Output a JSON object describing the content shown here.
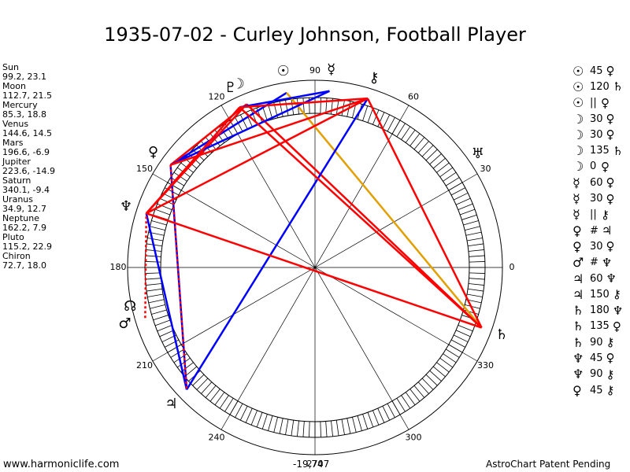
{
  "title": "1935-07-02 - Curley Johnson, Football Player",
  "planets": [
    {
      "name": "Sun",
      "coords": "99.2, 23.1",
      "glyph": "☉",
      "lon": 99.2
    },
    {
      "name": "Moon",
      "coords": "112.7, 21.5",
      "glyph": "☽",
      "lon": 112.7
    },
    {
      "name": "Mercury",
      "coords": "85.3, 18.8",
      "glyph": "☿",
      "lon": 85.3
    },
    {
      "name": "Venus",
      "coords": "144.6, 14.5",
      "glyph": "♀",
      "lon": 144.6
    },
    {
      "name": "Mars",
      "coords": "196.6, -6.9",
      "glyph": "♂",
      "lon": 196.6
    },
    {
      "name": "Jupiter",
      "coords": "223.6, -14.9",
      "glyph": "♃",
      "lon": 223.6
    },
    {
      "name": "Saturn",
      "coords": "340.1, -9.4",
      "glyph": "♄",
      "lon": 340.1
    },
    {
      "name": "Uranus",
      "coords": "34.9, 12.7",
      "glyph": "♅",
      "lon": 34.9
    },
    {
      "name": "Neptune",
      "coords": "162.2, 7.9",
      "glyph": "♆",
      "lon": 162.2
    },
    {
      "name": "Pluto",
      "coords": "115.2, 22.9",
      "glyph": "♇",
      "lon": 115.2
    },
    {
      "name": "Chiron",
      "coords": "72.7, 18.0",
      "glyph": "⚷",
      "lon": 72.7
    }
  ],
  "aspects": [
    {
      "p1": "☉",
      "value": "45",
      "p2": "♀"
    },
    {
      "p1": "☉",
      "value": "120",
      "p2": "♄"
    },
    {
      "p1": "☉",
      "value": "||",
      "p2": "♀"
    },
    {
      "p1": "☽",
      "value": "30",
      "p2": "♀"
    },
    {
      "p1": "☽",
      "value": "30",
      "p2": "♀"
    },
    {
      "p1": "☽",
      "value": "135",
      "p2": "♄"
    },
    {
      "p1": "☽",
      "value": "0",
      "p2": "♀"
    },
    {
      "p1": "☿",
      "value": "60",
      "p2": "♀"
    },
    {
      "p1": "☿",
      "value": "30",
      "p2": "♀"
    },
    {
      "p1": "☿",
      "value": "||",
      "p2": "⚷"
    },
    {
      "p1": "♀",
      "value": "#",
      "p2": "♃"
    },
    {
      "p1": "♀",
      "value": "30",
      "p2": "♀"
    },
    {
      "p1": "♂",
      "value": "#",
      "p2": "♆"
    },
    {
      "p1": "♃",
      "value": "60",
      "p2": "♆"
    },
    {
      "p1": "♃",
      "value": "150",
      "p2": "⚷"
    },
    {
      "p1": "♄",
      "value": "180",
      "p2": "♆"
    },
    {
      "p1": "♄",
      "value": "135",
      "p2": "♀"
    },
    {
      "p1": "♄",
      "value": "90",
      "p2": "⚷"
    },
    {
      "p1": "♆",
      "value": "45",
      "p2": "♀"
    },
    {
      "p1": "♆",
      "value": "90",
      "p2": "⚷"
    },
    {
      "p1": "♀",
      "value": "45",
      "p2": "⚷"
    }
  ],
  "chart": {
    "degree_labels": [
      "0",
      "30",
      "60",
      "90",
      "120",
      "150",
      "180",
      "210",
      "240",
      "270",
      "300",
      "330"
    ],
    "node_glyph": "☊",
    "aspect_lines": [
      {
        "from": 99.2,
        "to": 144.6,
        "color": "#0000ff",
        "style": "solid"
      },
      {
        "from": 99.2,
        "to": 340.1,
        "color": "#e2a000",
        "style": "solid"
      },
      {
        "from": 112.7,
        "to": 340.1,
        "color": "#ff0000",
        "style": "solid"
      },
      {
        "from": 112.7,
        "to": 144.6,
        "color": "#ff0000",
        "style": "solid"
      },
      {
        "from": 112.7,
        "to": 162.2,
        "color": "#ff0000",
        "style": "solid"
      },
      {
        "from": 85.3,
        "to": 115.2,
        "color": "#0000ff",
        "style": "solid"
      },
      {
        "from": 85.3,
        "to": 144.6,
        "color": "#0000ff",
        "style": "solid"
      },
      {
        "from": 72.7,
        "to": 223.6,
        "color": "#0000ff",
        "style": "solid"
      },
      {
        "from": 144.6,
        "to": 223.6,
        "color": "#0000ff",
        "style": "solid"
      },
      {
        "from": 162.2,
        "to": 223.6,
        "color": "#0000ff",
        "style": "solid"
      },
      {
        "from": 162.2,
        "to": 340.1,
        "color": "#ff0000",
        "style": "solid"
      },
      {
        "from": 340.1,
        "to": 115.2,
        "color": "#ff0000",
        "style": "solid"
      },
      {
        "from": 340.1,
        "to": 72.7,
        "color": "#ff0000",
        "style": "solid"
      },
      {
        "from": 162.2,
        "to": 72.7,
        "color": "#ff0000",
        "style": "solid"
      },
      {
        "from": 162.2,
        "to": 115.2,
        "color": "#ff0000",
        "style": "solid"
      },
      {
        "from": 115.2,
        "to": 72.7,
        "color": "#ff0000",
        "style": "solid"
      },
      {
        "from": 144.6,
        "to": 72.7,
        "color": "#ff0000",
        "style": "solid"
      },
      {
        "from": 144.6,
        "to": 223.6,
        "color": "#ff0000",
        "style": "dotted"
      },
      {
        "from": 196.6,
        "to": 162.2,
        "color": "#ff0000",
        "style": "dotted"
      }
    ]
  },
  "footer": {
    "left": "www.harmoniclife.com",
    "center": "-19,747",
    "right": "AstroChart Patent Pending"
  }
}
